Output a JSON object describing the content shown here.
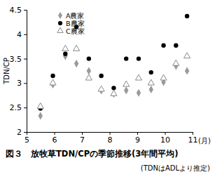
{
  "chart_data": {
    "type": "scatter",
    "title": "図３　放牧草TDN/CPの季節推移(3年間平均)",
    "subtitle": "(TDNはADLより推定)",
    "x_label": "(月)",
    "y_label": "TDN/CP",
    "x": [
      5.5,
      5.95,
      6.4,
      6.8,
      7.25,
      7.7,
      8.15,
      8.6,
      9.05,
      9.5,
      9.95,
      10.4,
      10.8
    ],
    "series": [
      {
        "name": "A農家",
        "color": "#9a9a9a",
        "marker": "diamond",
        "values": [
          2.33,
          2.97,
          3.55,
          3.4,
          3.25,
          2.85,
          2.78,
          2.85,
          2.8,
          2.87,
          3.02,
          3.35,
          3.25
        ]
      },
      {
        "name": "B農家",
        "color": "#000000",
        "marker": "circle",
        "values": [
          2.48,
          3.15,
          3.6,
          4.15,
          3.5,
          3.15,
          2.9,
          3.5,
          3.5,
          3.22,
          3.77,
          3.77,
          4.37
        ]
      },
      {
        "name": "C農家",
        "color": "#888888",
        "marker": "triangle-open",
        "values": [
          2.52,
          3.0,
          3.7,
          3.7,
          3.1,
          2.87,
          2.78,
          2.97,
          3.1,
          3.0,
          3.1,
          3.4,
          3.55
        ]
      }
    ],
    "xlim": [
      5,
      11
    ],
    "xticks": [
      5,
      6,
      7,
      8,
      9,
      10,
      11
    ],
    "ylim": [
      2,
      4.5
    ],
    "yticks": [
      2,
      2.5,
      3,
      3.5,
      4,
      4.5
    ],
    "grid": false,
    "legend": "top-left"
  }
}
